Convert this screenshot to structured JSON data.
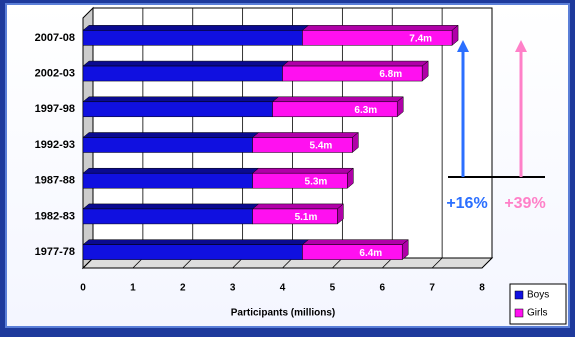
{
  "chart_data": {
    "type": "bar",
    "orientation": "horizontal",
    "stacked": true,
    "three_d": true,
    "categories": [
      "2007-08",
      "2002-03",
      "1997-98",
      "1992-93",
      "1987-88",
      "1982-83",
      "1977-78"
    ],
    "series": [
      {
        "name": "Boys",
        "color": "#1010e0",
        "values": [
          4.4,
          4.0,
          3.8,
          3.4,
          3.4,
          3.4,
          4.4
        ]
      },
      {
        "name": "Girls",
        "color": "#ff10f0",
        "values": [
          3.0,
          2.8,
          2.5,
          2.0,
          1.9,
          1.7,
          2.0
        ]
      }
    ],
    "total_labels": [
      "7.4m",
      "6.8m",
      "6.3m",
      "5.4m",
      "5.3m",
      "5.1m",
      "6.4m"
    ],
    "xlabel": "Participants (millions)",
    "xlim": [
      0,
      8
    ],
    "xticks": [
      0,
      1,
      2,
      3,
      4,
      5,
      6,
      7,
      8
    ],
    "grid": true,
    "legend": "lower right",
    "annotations": [
      {
        "text": "+16%",
        "color": "#2b6fff"
      },
      {
        "text": "+39%",
        "color": "#ff80c8"
      }
    ]
  }
}
